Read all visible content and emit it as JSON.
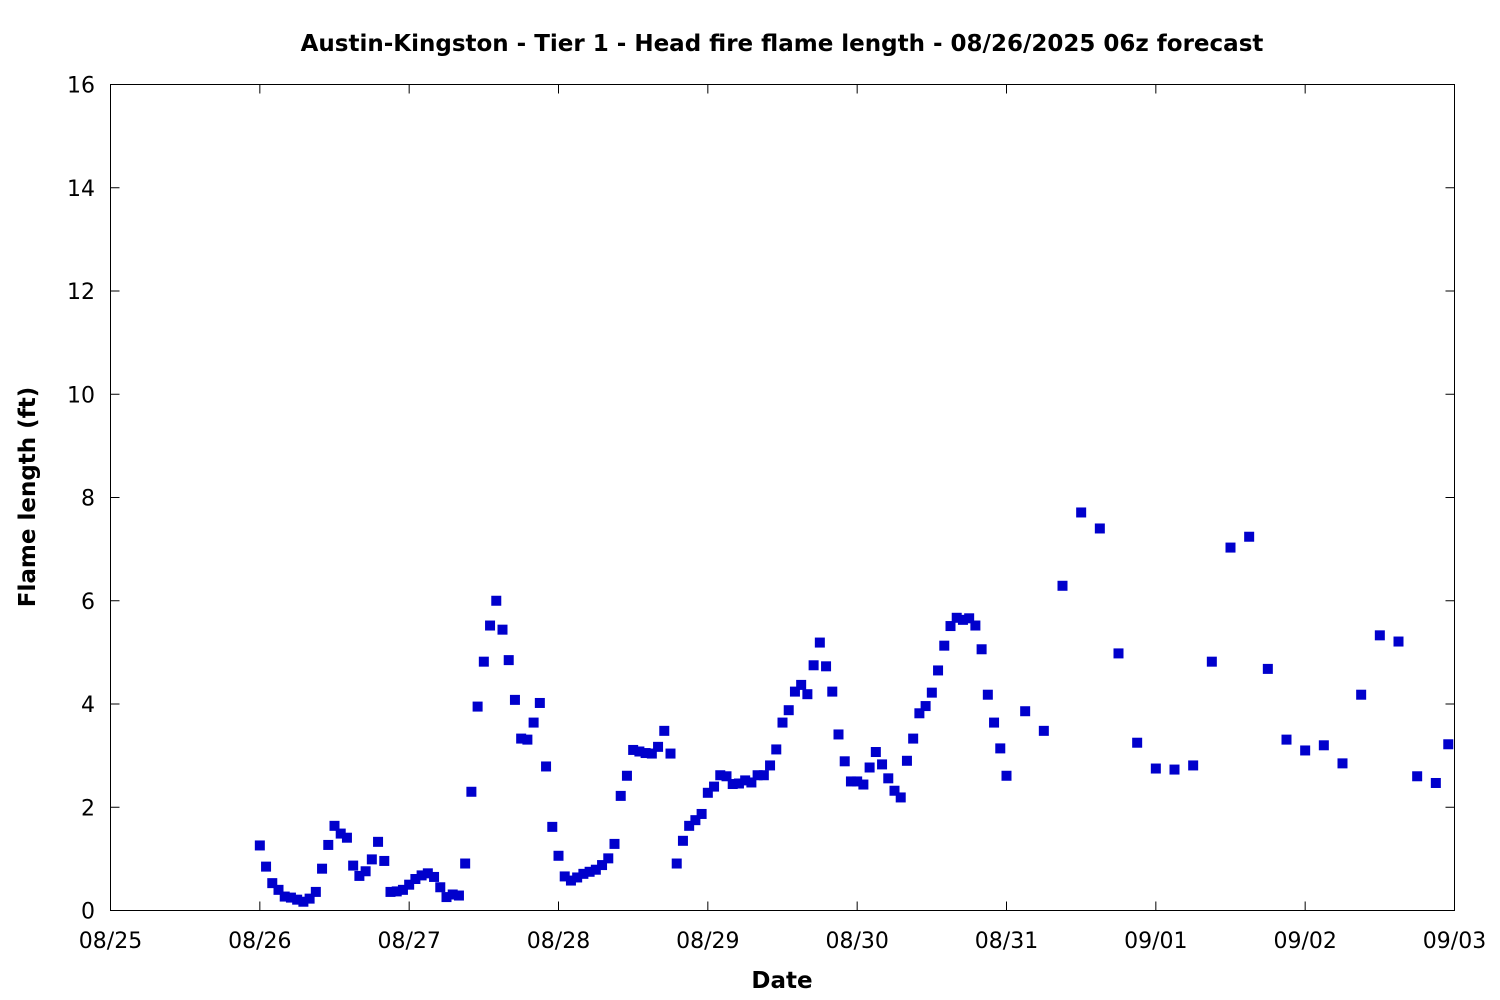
{
  "chart_data": {
    "type": "scatter",
    "title": "Austin-Kingston - Tier 1 - Head fire flame length - 08/26/2025 06z forecast",
    "xlabel": "Date",
    "ylabel": "Flame length (ft)",
    "x_axis": {
      "kind": "date",
      "range": [
        "08/25 00z",
        "09/03 00z"
      ],
      "ticks": [
        "08/25",
        "08/26",
        "08/27",
        "08/28",
        "08/29",
        "08/30",
        "08/31",
        "09/01",
        "09/02",
        "09/03"
      ]
    },
    "y_axis": {
      "range": [
        0,
        16
      ],
      "ticks": [
        "0",
        "2",
        "4",
        "6",
        "8",
        "10",
        "12",
        "14",
        "16"
      ]
    },
    "grid": false,
    "legend": "none",
    "marker_color": "#0000cc",
    "series": [
      {
        "points": [
          [
            "08/26 00z",
            1.26
          ],
          [
            "08/26 01z",
            0.85
          ],
          [
            "08/26 02z",
            0.53
          ],
          [
            "08/26 03z",
            0.4
          ],
          [
            "08/26 04z",
            0.27
          ],
          [
            "08/26 05z",
            0.25
          ],
          [
            "08/26 06z",
            0.21
          ],
          [
            "08/26 07z",
            0.17
          ],
          [
            "08/26 08z",
            0.23
          ],
          [
            "08/26 09z",
            0.36
          ],
          [
            "08/26 10z",
            0.81
          ],
          [
            "08/26 11z",
            1.27
          ],
          [
            "08/26 12z",
            1.64
          ],
          [
            "08/26 13z",
            1.49
          ],
          [
            "08/26 14z",
            1.41
          ],
          [
            "08/26 15z",
            0.87
          ],
          [
            "08/26 16z",
            0.67
          ],
          [
            "08/26 17z",
            0.76
          ],
          [
            "08/26 18z",
            0.99
          ],
          [
            "08/26 19z",
            1.33
          ],
          [
            "08/26 20z",
            0.96
          ],
          [
            "08/26 21z",
            0.36
          ],
          [
            "08/26 22z",
            0.37
          ],
          [
            "08/26 23z",
            0.4
          ],
          [
            "08/27 00z",
            0.5
          ],
          [
            "08/27 01z",
            0.61
          ],
          [
            "08/27 02z",
            0.68
          ],
          [
            "08/27 03z",
            0.72
          ],
          [
            "08/27 04z",
            0.65
          ],
          [
            "08/27 05z",
            0.45
          ],
          [
            "08/27 06z",
            0.26
          ],
          [
            "08/27 07z",
            0.31
          ],
          [
            "08/27 08z",
            0.29
          ],
          [
            "08/27 09z",
            0.91
          ],
          [
            "08/27 10z",
            2.3
          ],
          [
            "08/27 11z",
            3.95
          ],
          [
            "08/27 12z",
            4.82
          ],
          [
            "08/27 13z",
            5.52
          ],
          [
            "08/27 14z",
            6.0
          ],
          [
            "08/27 15z",
            5.44
          ],
          [
            "08/27 16z",
            4.85
          ],
          [
            "08/27 17z",
            4.08
          ],
          [
            "08/27 18z",
            3.33
          ],
          [
            "08/27 19z",
            3.31
          ],
          [
            "08/27 20z",
            3.64
          ],
          [
            "08/27 21z",
            4.02
          ],
          [
            "08/27 22z",
            2.79
          ],
          [
            "08/27 23z",
            1.62
          ],
          [
            "08/28 00z",
            1.06
          ],
          [
            "08/28 01z",
            0.66
          ],
          [
            "08/28 02z",
            0.58
          ],
          [
            "08/28 03z",
            0.64
          ],
          [
            "08/28 04z",
            0.71
          ],
          [
            "08/28 05z",
            0.75
          ],
          [
            "08/28 06z",
            0.79
          ],
          [
            "08/28 07z",
            0.88
          ],
          [
            "08/28 08z",
            1.01
          ],
          [
            "08/28 09z",
            1.29
          ],
          [
            "08/28 10z",
            2.22
          ],
          [
            "08/28 11z",
            2.61
          ],
          [
            "08/28 12z",
            3.11
          ],
          [
            "08/28 13z",
            3.08
          ],
          [
            "08/28 14z",
            3.05
          ],
          [
            "08/28 15z",
            3.04
          ],
          [
            "08/28 16z",
            3.17
          ],
          [
            "08/28 17z",
            3.48
          ],
          [
            "08/28 18z",
            3.04
          ],
          [
            "08/28 19z",
            0.91
          ],
          [
            "08/28 20z",
            1.35
          ],
          [
            "08/28 21z",
            1.64
          ],
          [
            "08/28 22z",
            1.75
          ],
          [
            "08/28 23z",
            1.87
          ],
          [
            "08/29 00z",
            2.28
          ],
          [
            "08/29 01z",
            2.4
          ],
          [
            "08/29 02z",
            2.62
          ],
          [
            "08/29 03z",
            2.6
          ],
          [
            "08/29 04z",
            2.45
          ],
          [
            "08/29 05z",
            2.46
          ],
          [
            "08/29 06z",
            2.52
          ],
          [
            "08/29 07z",
            2.48
          ],
          [
            "08/29 08z",
            2.62
          ],
          [
            "08/29 09z",
            2.62
          ],
          [
            "08/29 10z",
            2.81
          ],
          [
            "08/29 11z",
            3.12
          ],
          [
            "08/29 12z",
            3.64
          ],
          [
            "08/29 13z",
            3.88
          ],
          [
            "08/29 14z",
            4.24
          ],
          [
            "08/29 15z",
            4.37
          ],
          [
            "08/29 16z",
            4.19
          ],
          [
            "08/29 17z",
            4.75
          ],
          [
            "08/29 18z",
            5.19
          ],
          [
            "08/29 19z",
            4.73
          ],
          [
            "08/29 20z",
            4.24
          ],
          [
            "08/29 21z",
            3.41
          ],
          [
            "08/29 22z",
            2.89
          ],
          [
            "08/29 23z",
            2.5
          ],
          [
            "08/30 00z",
            2.5
          ],
          [
            "08/30 01z",
            2.44
          ],
          [
            "08/30 02z",
            2.77
          ],
          [
            "08/30 03z",
            3.07
          ],
          [
            "08/30 04z",
            2.83
          ],
          [
            "08/30 05z",
            2.56
          ],
          [
            "08/30 06z",
            2.32
          ],
          [
            "08/30 07z",
            2.19
          ],
          [
            "08/30 08z",
            2.9
          ],
          [
            "08/30 09z",
            3.33
          ],
          [
            "08/30 10z",
            3.82
          ],
          [
            "08/30 11z",
            3.96
          ],
          [
            "08/30 12z",
            4.22
          ],
          [
            "08/30 13z",
            4.65
          ],
          [
            "08/30 14z",
            5.13
          ],
          [
            "08/30 15z",
            5.51
          ],
          [
            "08/30 16z",
            5.67
          ],
          [
            "08/30 17z",
            5.63
          ],
          [
            "08/30 18z",
            5.66
          ],
          [
            "08/30 19z",
            5.52
          ],
          [
            "08/30 20z",
            5.06
          ],
          [
            "08/30 21z",
            4.18
          ],
          [
            "08/30 22z",
            3.64
          ],
          [
            "08/30 23z",
            3.14
          ],
          [
            "08/31 00z",
            2.61
          ],
          [
            "08/31 03z",
            3.86
          ],
          [
            "08/31 06z",
            3.48
          ],
          [
            "08/31 09z",
            6.29
          ],
          [
            "08/31 12z",
            7.71
          ],
          [
            "08/31 15z",
            7.4
          ],
          [
            "08/31 18z",
            4.98
          ],
          [
            "08/31 21z",
            3.25
          ],
          [
            "09/01 00z",
            2.75
          ],
          [
            "09/01 03z",
            2.73
          ],
          [
            "09/01 06z",
            2.81
          ],
          [
            "09/01 09z",
            4.82
          ],
          [
            "09/01 12z",
            7.03
          ],
          [
            "09/01 15z",
            7.24
          ],
          [
            "09/01 18z",
            4.68
          ],
          [
            "09/01 21z",
            3.31
          ],
          [
            "09/02 00z",
            3.1
          ],
          [
            "09/02 03z",
            3.2
          ],
          [
            "09/02 06z",
            2.85
          ],
          [
            "09/02 09z",
            4.18
          ],
          [
            "09/02 12z",
            5.33
          ],
          [
            "09/02 15z",
            5.21
          ],
          [
            "09/02 18z",
            2.6
          ],
          [
            "09/02 21z",
            2.47
          ],
          [
            "09/02 23z",
            3.22
          ]
        ]
      }
    ]
  }
}
